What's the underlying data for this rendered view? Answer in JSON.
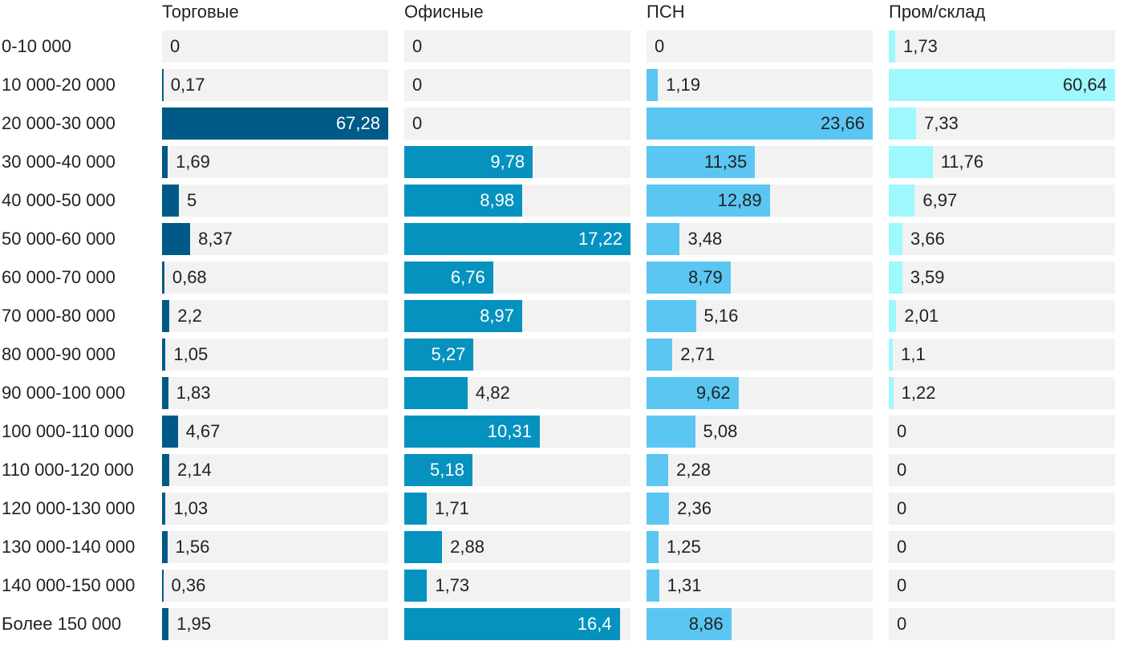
{
  "chart_data": {
    "type": "bar",
    "categories": [
      "0-10 000",
      "10 000-20 000",
      "20 000-30 000",
      "30 000-40 000",
      "40 000-50 000",
      "50 000-60 000",
      "60 000-70 000",
      "70 000-80 000",
      "80 000-90 000",
      "90 000-100 000",
      "100 000-110 000",
      "110 000-120 000",
      "120 000-130 000",
      "130 000-140 000",
      "140 000-150 000",
      "Более 150 000"
    ],
    "series": [
      {
        "name": "Торговые",
        "color": "#005a87",
        "values": [
          0,
          0.17,
          67.28,
          1.69,
          5,
          8.37,
          0.68,
          2.2,
          1.05,
          1.83,
          4.67,
          2.14,
          1.03,
          1.56,
          0.36,
          1.95
        ],
        "labels": [
          "0",
          "0,17",
          "67,28",
          "1,69",
          "5",
          "8,37",
          "0,68",
          "2,2",
          "1,05",
          "1,83",
          "4,67",
          "2,14",
          "1,03",
          "1,56",
          "0,36",
          "1,95"
        ]
      },
      {
        "name": "Офисные",
        "color": "#0592bf",
        "values": [
          0,
          0,
          0,
          9.78,
          8.98,
          17.22,
          6.76,
          8.97,
          5.27,
          4.82,
          10.31,
          5.18,
          1.71,
          2.88,
          1.73,
          16.4
        ],
        "labels": [
          "0",
          "0",
          "0",
          "9,78",
          "8,98",
          "17,22",
          "6,76",
          "8,97",
          "5,27",
          "4,82",
          "10,31",
          "5,18",
          "1,71",
          "2,88",
          "1,73",
          "16,4"
        ]
      },
      {
        "name": "ПСН",
        "color": "#5bc6f2",
        "values": [
          0,
          1.19,
          23.66,
          11.35,
          12.89,
          3.48,
          8.79,
          5.16,
          2.71,
          9.62,
          5.08,
          2.28,
          2.36,
          1.25,
          1.31,
          8.86
        ],
        "labels": [
          "0",
          "1,19",
          "23,66",
          "11,35",
          "12,89",
          "3,48",
          "8,79",
          "5,16",
          "2,71",
          "9,62",
          "5,08",
          "2,28",
          "2,36",
          "1,25",
          "1,31",
          "8,86"
        ]
      },
      {
        "name": "Пром/склад",
        "color": "#9ef8fd",
        "values": [
          1.73,
          60.64,
          7.33,
          11.76,
          6.97,
          3.66,
          3.59,
          2.01,
          1.1,
          1.22,
          0,
          0,
          0,
          0,
          0,
          0
        ],
        "labels": [
          "1,73",
          "60,64",
          "7,33",
          "11,76",
          "6,97",
          "3,66",
          "3,59",
          "2,01",
          "1,1",
          "1,22",
          "0",
          "0",
          "0",
          "0",
          "0",
          "0"
        ]
      }
    ],
    "title": "",
    "xlabel": "",
    "ylabel": "",
    "grid": false,
    "legend": "none"
  }
}
